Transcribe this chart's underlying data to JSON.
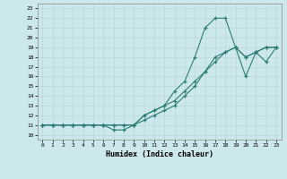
{
  "xlabel": "Humidex (Indice chaleur)",
  "bg_color": "#cce8ec",
  "line_color": "#2e7d74",
  "xlim": [
    -0.5,
    23.5
  ],
  "ylim": [
    9.5,
    23.5
  ],
  "xticks": [
    0,
    1,
    2,
    3,
    4,
    5,
    6,
    7,
    8,
    9,
    10,
    11,
    12,
    13,
    14,
    15,
    16,
    17,
    18,
    19,
    20,
    21,
    22,
    23
  ],
  "yticks": [
    10,
    11,
    12,
    13,
    14,
    15,
    16,
    17,
    18,
    19,
    20,
    21,
    22,
    23
  ],
  "line_curvy_x": [
    0,
    1,
    2,
    3,
    4,
    5,
    6,
    7,
    8,
    9,
    10,
    11,
    12,
    13,
    14,
    15,
    16,
    17,
    18,
    19,
    20,
    21,
    22,
    23
  ],
  "line_curvy_y": [
    11,
    11,
    11,
    11,
    11,
    11,
    11,
    10.5,
    10.5,
    11,
    12,
    12.5,
    13,
    14.5,
    15.5,
    18,
    21,
    22,
    22,
    19,
    16,
    18.5,
    17.5,
    19
  ],
  "line_diag1_x": [
    0,
    1,
    2,
    3,
    4,
    5,
    6,
    7,
    8,
    9,
    10,
    11,
    12,
    13,
    14,
    15,
    16,
    17,
    18,
    19,
    20,
    21,
    22,
    23
  ],
  "line_diag1_y": [
    11,
    11,
    11,
    11,
    11,
    11,
    11,
    11,
    11,
    11,
    11.5,
    12,
    12.5,
    13,
    14,
    15,
    16.5,
    18,
    18.5,
    19,
    18,
    18.5,
    19,
    19
  ],
  "line_diag2_x": [
    0,
    1,
    2,
    3,
    4,
    5,
    6,
    7,
    8,
    9,
    10,
    11,
    12,
    13,
    14,
    15,
    16,
    17,
    18,
    19,
    20,
    21,
    22,
    23
  ],
  "line_diag2_y": [
    11,
    11,
    11,
    11,
    11,
    11,
    11,
    11,
    11,
    11,
    12,
    12.5,
    13,
    13.5,
    14.5,
    15.5,
    16.5,
    17.5,
    18.5,
    19,
    18,
    18.5,
    19,
    19
  ]
}
